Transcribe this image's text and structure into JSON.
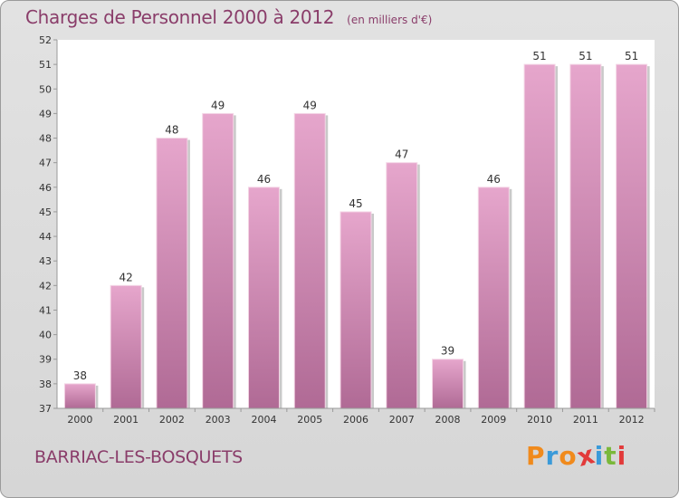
{
  "header": {
    "title": "Charges de Personnel 2000 à 2012",
    "subtitle": "(en milliers d'€)"
  },
  "footer": {
    "commune": "BARRIAC-LES-BOSQUETS",
    "logo_text": "Proxiti"
  },
  "colors": {
    "bar_top": "#e6a6cc",
    "bar_bottom": "#b06a95",
    "text_accent": "#8a3d6a",
    "logo_letters": [
      "#f08a1c",
      "#3a9ad9",
      "#f08a1c",
      "#e23a3a",
      "#3a9ad9",
      "#7ab83a",
      "#e23a3a"
    ]
  },
  "chart_data": {
    "type": "bar",
    "title": "Charges de Personnel 2000 à 2012",
    "subtitle": "(en milliers d'€)",
    "categories": [
      "2000",
      "2001",
      "2002",
      "2003",
      "2004",
      "2005",
      "2006",
      "2007",
      "2008",
      "2009",
      "2010",
      "2011",
      "2012"
    ],
    "values": [
      38,
      42,
      48,
      49,
      46,
      49,
      45,
      47,
      39,
      46,
      51,
      51,
      51
    ],
    "ylim": [
      37,
      52
    ],
    "yticks": [
      37,
      38,
      39,
      40,
      41,
      42,
      43,
      44,
      45,
      46,
      47,
      48,
      49,
      50,
      51,
      52
    ],
    "grid": false,
    "data_labels": true
  }
}
